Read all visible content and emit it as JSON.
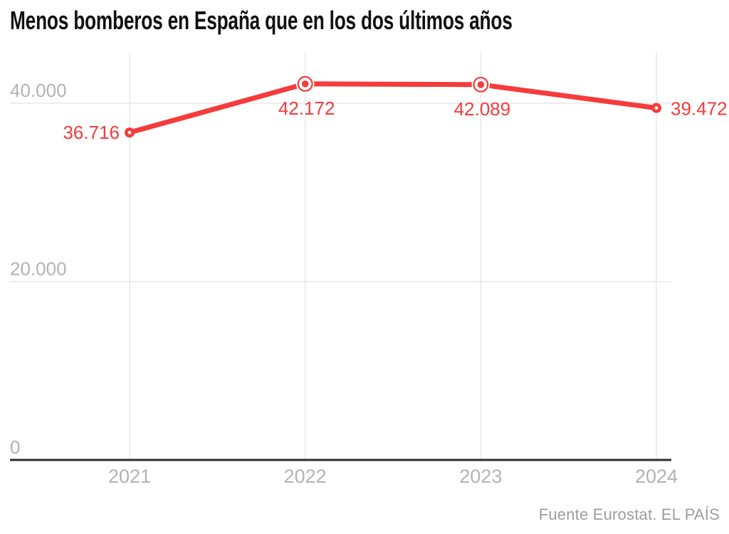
{
  "header": {
    "title": "Menos bomberos en España que en los dos últimos años"
  },
  "footer": {
    "source_label": "Fuente Eurostat",
    "separator": ". ",
    "brand": "EL PAÍS"
  },
  "colors": {
    "accent": "#f53b3b",
    "grid": "#e8e8e8",
    "baseline": "#2f2f2f",
    "axis-text": "#b3b3b3",
    "title-text": "#111111",
    "source-text": "#9d9d9d",
    "background": "#ffffff"
  },
  "chart_data": {
    "type": "line",
    "title": "Menos bomberos en España que en los dos últimos años",
    "categories": [
      "2021",
      "2022",
      "2023",
      "2024"
    ],
    "values": [
      36716,
      42172,
      42089,
      39472
    ],
    "value_labels": [
      "36.716",
      "42.172",
      "42.089",
      "39.472"
    ],
    "label_positions": [
      "left",
      "below",
      "below",
      "right"
    ],
    "marker_styles": [
      "donut",
      "target",
      "target",
      "donut"
    ],
    "y_ticks": [
      {
        "value": 0,
        "label": "0"
      },
      {
        "value": 20000,
        "label": "20.000"
      },
      {
        "value": 40000,
        "label": "40.000"
      }
    ],
    "ylim": [
      0,
      45600
    ],
    "xlabel": "",
    "ylabel": "",
    "grid": {
      "vertical": true,
      "horizontal": true
    },
    "legend": "none",
    "source": "Fuente Eurostat. EL PAÍS"
  }
}
